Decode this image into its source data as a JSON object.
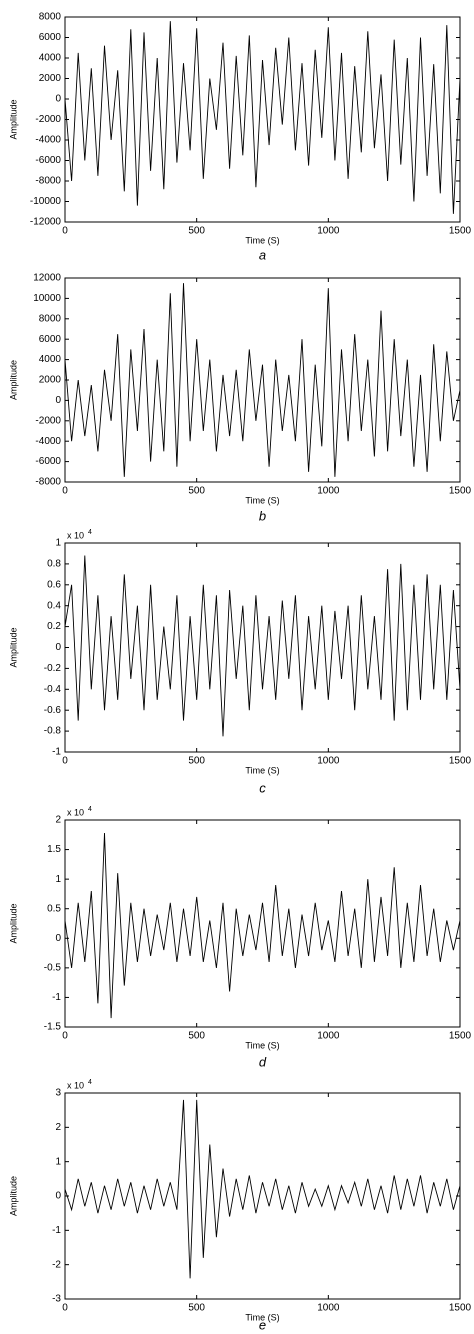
{
  "chart_data": [
    {
      "type": "line",
      "caption": "a",
      "xlabel": "Time (S)",
      "ylabel": "Amplitude",
      "color": "#000000",
      "xlim": [
        0,
        1500
      ],
      "xticks": [
        0,
        500,
        1000,
        1500
      ],
      "ylim": [
        -12000,
        8000
      ],
      "yticks": [
        -12000,
        -10000,
        -8000,
        -6000,
        -4000,
        -2000,
        0,
        2000,
        4000,
        6000,
        8000
      ],
      "x": [
        0,
        25,
        50,
        75,
        100,
        125,
        150,
        175,
        200,
        225,
        250,
        275,
        300,
        325,
        350,
        375,
        400,
        425,
        450,
        475,
        500,
        525,
        550,
        575,
        600,
        625,
        650,
        675,
        700,
        725,
        750,
        775,
        800,
        825,
        850,
        875,
        900,
        925,
        950,
        975,
        1000,
        1025,
        1050,
        1075,
        1100,
        1125,
        1150,
        1175,
        1200,
        1225,
        1250,
        1275,
        1300,
        1325,
        1350,
        1375,
        1400,
        1425,
        1450,
        1475,
        1500
      ],
      "values": [
        0,
        -8000,
        4500,
        -6000,
        3000,
        -7500,
        5200,
        -4000,
        2800,
        -9000,
        6800,
        -10400,
        6500,
        -7000,
        4000,
        -8800,
        7600,
        -6200,
        3500,
        -5000,
        6900,
        -7800,
        2000,
        -3000,
        5500,
        -6800,
        4200,
        -5500,
        6200,
        -8600,
        3800,
        -4500,
        5000,
        -2500,
        6000,
        -5000,
        3500,
        -6500,
        4800,
        -3800,
        7000,
        -6000,
        4500,
        -7800,
        3200,
        -5200,
        6600,
        -4800,
        2400,
        -8000,
        5800,
        -6400,
        4000,
        -10000,
        6000,
        -7500,
        3400,
        -9200,
        7200,
        -11200,
        2000
      ]
    },
    {
      "type": "line",
      "caption": "b",
      "xlabel": "Time (S)",
      "ylabel": "Amplitude",
      "color": "#000000",
      "xlim": [
        0,
        1500
      ],
      "xticks": [
        0,
        500,
        1000,
        1500
      ],
      "ylim": [
        -8000,
        12000
      ],
      "yticks": [
        -8000,
        -6000,
        -4000,
        -2000,
        0,
        2000,
        4000,
        6000,
        8000,
        10000,
        12000
      ],
      "x": [
        0,
        25,
        50,
        75,
        100,
        125,
        150,
        175,
        200,
        225,
        250,
        275,
        300,
        325,
        350,
        375,
        400,
        425,
        450,
        475,
        500,
        525,
        550,
        575,
        600,
        625,
        650,
        675,
        700,
        725,
        750,
        775,
        800,
        825,
        850,
        875,
        900,
        925,
        950,
        975,
        1000,
        1025,
        1050,
        1075,
        1100,
        1125,
        1150,
        1175,
        1200,
        1225,
        1250,
        1275,
        1300,
        1325,
        1350,
        1375,
        1400,
        1425,
        1450,
        1475,
        1500
      ],
      "values": [
        4000,
        -4000,
        2000,
        -3500,
        1500,
        -5000,
        3000,
        -2000,
        6500,
        -7500,
        5000,
        -3000,
        7000,
        -6000,
        4000,
        -5000,
        10500,
        -6500,
        11500,
        -4000,
        6000,
        -3000,
        4000,
        -5000,
        2500,
        -3500,
        3000,
        -4000,
        5000,
        -2000,
        3500,
        -6500,
        4000,
        -3000,
        2500,
        -4000,
        6000,
        -7000,
        3500,
        -4500,
        11000,
        -7500,
        5000,
        -4000,
        6500,
        -3000,
        4000,
        -5500,
        8800,
        -5000,
        6000,
        -3500,
        4000,
        -6500,
        2500,
        -7000,
        5500,
        -4000,
        4800,
        -2000,
        1000
      ]
    },
    {
      "type": "line",
      "caption": "c",
      "xlabel": "Time (S)",
      "ylabel": "Amplitude",
      "color": "#000000",
      "y_multiplier": "x 10",
      "y_multiplier_exponent": "4",
      "xlim": [
        0,
        1500
      ],
      "xticks": [
        0,
        500,
        1000,
        1500
      ],
      "ylim": [
        -1,
        1
      ],
      "yticks": [
        -1,
        -0.8,
        -0.6,
        -0.4,
        -0.2,
        0,
        0.2,
        0.4,
        0.6,
        0.8,
        1
      ],
      "x": [
        0,
        25,
        50,
        75,
        100,
        125,
        150,
        175,
        200,
        225,
        250,
        275,
        300,
        325,
        350,
        375,
        400,
        425,
        450,
        475,
        500,
        525,
        550,
        575,
        600,
        625,
        650,
        675,
        700,
        725,
        750,
        775,
        800,
        825,
        850,
        875,
        900,
        925,
        950,
        975,
        1000,
        1025,
        1050,
        1075,
        1100,
        1125,
        1150,
        1175,
        1200,
        1225,
        1250,
        1275,
        1300,
        1325,
        1350,
        1375,
        1400,
        1425,
        1450,
        1475,
        1500
      ],
      "values": [
        0.2,
        0.6,
        -0.7,
        0.88,
        -0.4,
        0.5,
        -0.6,
        0.3,
        -0.5,
        0.7,
        -0.3,
        0.4,
        -0.6,
        0.6,
        -0.5,
        0.2,
        -0.4,
        0.5,
        -0.7,
        0.3,
        -0.5,
        0.6,
        -0.4,
        0.5,
        -0.85,
        0.55,
        -0.3,
        0.4,
        -0.6,
        0.5,
        -0.4,
        0.3,
        -0.5,
        0.45,
        -0.3,
        0.5,
        -0.6,
        0.3,
        -0.4,
        0.4,
        -0.5,
        0.35,
        -0.3,
        0.4,
        -0.6,
        0.5,
        -0.4,
        0.3,
        -0.5,
        0.75,
        -0.7,
        0.8,
        -0.6,
        0.6,
        -0.5,
        0.7,
        -0.4,
        0.6,
        -0.5,
        0.55,
        -0.4
      ]
    },
    {
      "type": "line",
      "caption": "d",
      "xlabel": "Time (S)",
      "ylabel": "Amplitude",
      "color": "#000000",
      "y_multiplier": "x 10",
      "y_multiplier_exponent": "4",
      "xlim": [
        0,
        1500
      ],
      "xticks": [
        0,
        500,
        1000,
        1500
      ],
      "ylim": [
        -1.5,
        2
      ],
      "yticks": [
        -1.5,
        -1,
        -0.5,
        0,
        0.5,
        1,
        1.5,
        2
      ],
      "x": [
        0,
        25,
        50,
        75,
        100,
        125,
        150,
        175,
        200,
        225,
        250,
        275,
        300,
        325,
        350,
        375,
        400,
        425,
        450,
        475,
        500,
        525,
        550,
        575,
        600,
        625,
        650,
        675,
        700,
        725,
        750,
        775,
        800,
        825,
        850,
        875,
        900,
        925,
        950,
        975,
        1000,
        1025,
        1050,
        1075,
        1100,
        1125,
        1150,
        1175,
        1200,
        1225,
        1250,
        1275,
        1300,
        1325,
        1350,
        1375,
        1400,
        1425,
        1450,
        1475,
        1500
      ],
      "values": [
        0.3,
        -0.5,
        0.6,
        -0.4,
        0.8,
        -1.1,
        1.78,
        -1.35,
        1.1,
        -0.8,
        0.6,
        -0.4,
        0.5,
        -0.3,
        0.4,
        -0.2,
        0.6,
        -0.4,
        0.5,
        -0.3,
        0.7,
        -0.4,
        0.3,
        -0.5,
        0.6,
        -0.9,
        0.5,
        -0.3,
        0.4,
        -0.2,
        0.6,
        -0.4,
        0.9,
        -0.3,
        0.5,
        -0.5,
        0.4,
        -0.3,
        0.6,
        -0.2,
        0.3,
        -0.4,
        0.8,
        -0.3,
        0.5,
        -0.5,
        1.0,
        -0.4,
        0.7,
        -0.3,
        1.2,
        -0.5,
        0.6,
        -0.4,
        0.9,
        -0.3,
        0.5,
        -0.4,
        0.3,
        -0.2,
        0.3
      ]
    },
    {
      "type": "line",
      "caption": "e",
      "xlabel": "Time (S)",
      "ylabel": "Amplitude",
      "color": "#000000",
      "y_multiplier": "x 10",
      "y_multiplier_exponent": "4",
      "xlim": [
        0,
        1500
      ],
      "xticks": [
        0,
        500,
        1000,
        1500
      ],
      "ylim": [
        -3,
        3
      ],
      "yticks": [
        -3,
        -2,
        -1,
        0,
        1,
        2,
        3
      ],
      "x": [
        0,
        25,
        50,
        75,
        100,
        125,
        150,
        175,
        200,
        225,
        250,
        275,
        300,
        325,
        350,
        375,
        400,
        425,
        450,
        475,
        500,
        525,
        550,
        575,
        600,
        625,
        650,
        675,
        700,
        725,
        750,
        775,
        800,
        825,
        850,
        875,
        900,
        925,
        950,
        975,
        1000,
        1025,
        1050,
        1075,
        1100,
        1125,
        1150,
        1175,
        1200,
        1225,
        1250,
        1275,
        1300,
        1325,
        1350,
        1375,
        1400,
        1425,
        1450,
        1475,
        1500
      ],
      "values": [
        0.2,
        -0.4,
        0.5,
        -0.3,
        0.4,
        -0.5,
        0.3,
        -0.4,
        0.5,
        -0.3,
        0.4,
        -0.5,
        0.3,
        -0.4,
        0.5,
        -0.3,
        0.4,
        -0.4,
        2.8,
        -2.4,
        2.8,
        -1.8,
        1.5,
        -1.2,
        0.8,
        -0.6,
        0.5,
        -0.4,
        0.6,
        -0.5,
        0.4,
        -0.3,
        0.5,
        -0.4,
        0.3,
        -0.5,
        0.4,
        -0.3,
        0.2,
        -0.3,
        0.3,
        -0.4,
        0.3,
        -0.2,
        0.4,
        -0.3,
        0.5,
        -0.4,
        0.3,
        -0.5,
        0.6,
        -0.4,
        0.5,
        -0.3,
        0.6,
        -0.5,
        0.4,
        -0.3,
        0.5,
        -0.4,
        0.3
      ]
    }
  ]
}
